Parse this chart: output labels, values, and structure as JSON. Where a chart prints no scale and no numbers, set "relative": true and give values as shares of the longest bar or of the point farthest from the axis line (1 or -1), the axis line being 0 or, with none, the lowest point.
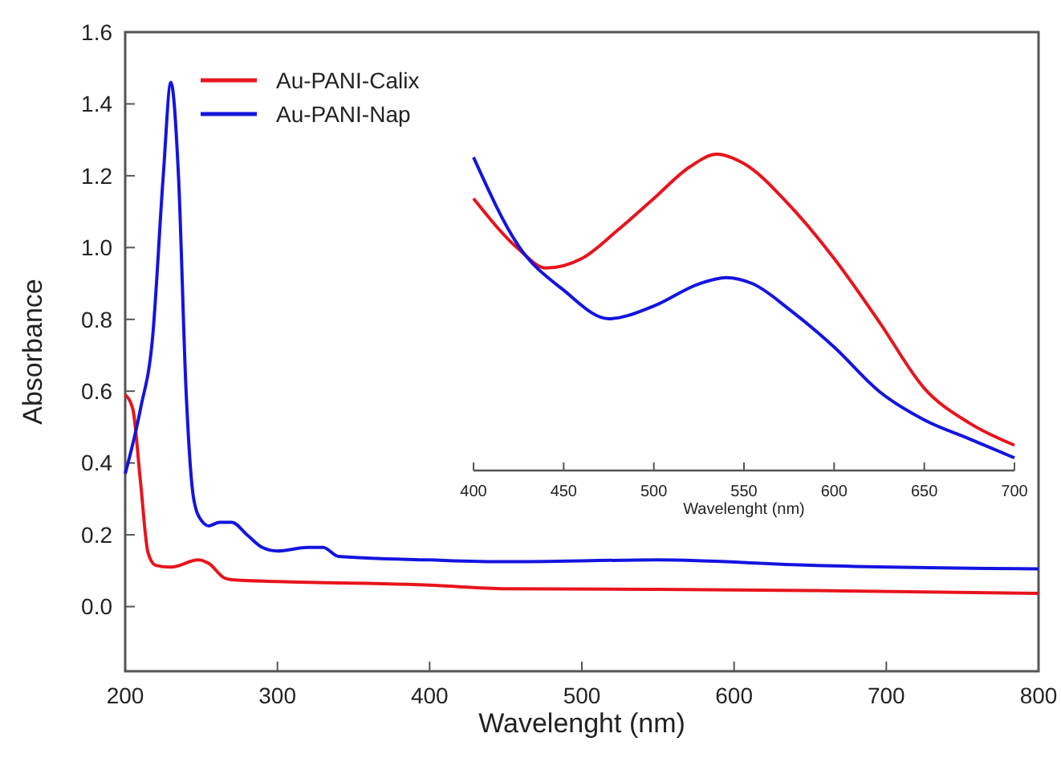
{
  "chart_data": [
    {
      "type": "line",
      "xlabel": "Wavelenght (nm)",
      "ylabel": "Absorbance",
      "xlim": [
        200,
        800
      ],
      "ylim": [
        -0.18,
        1.6
      ],
      "xticks": [
        200,
        300,
        400,
        500,
        600,
        700,
        800
      ],
      "yticks": [
        {
          "value": 0,
          "label": "0.0"
        },
        {
          "value": 0.2,
          "label": "0.2"
        },
        {
          "value": 0.4,
          "label": "0.4"
        },
        {
          "value": 0.6,
          "label": "0.6"
        },
        {
          "value": 0.8,
          "label": "0.8"
        },
        {
          "value": 1,
          "label": "1.0"
        },
        {
          "value": 1.2,
          "label": "1.2"
        },
        {
          "value": 1.4,
          "label": "1.4"
        },
        {
          "value": 1.6,
          "label": "1.6"
        }
      ],
      "legend": "top left",
      "grid": false,
      "series": [
        {
          "name": "Au-PANI-Calix",
          "color": "#e8141c",
          "x": [
            200,
            205,
            210,
            215,
            220,
            230,
            248,
            255,
            265,
            270,
            300,
            400,
            450,
            550,
            650,
            800
          ],
          "values": [
            0.59,
            0.55,
            0.35,
            0.15,
            0.115,
            0.11,
            0.13,
            0.12,
            0.08,
            0.075,
            0.07,
            0.06,
            0.05,
            0.048,
            0.045,
            0.037
          ]
        },
        {
          "name": "Au-PANI-Nap",
          "color": "#1414e0",
          "x": [
            200,
            210,
            218,
            225,
            230,
            235,
            240,
            245,
            250,
            255,
            262,
            270,
            280,
            290,
            300,
            320,
            330,
            340,
            400,
            450,
            550,
            650,
            800
          ],
          "values": [
            0.37,
            0.55,
            0.75,
            1.2,
            1.46,
            1.2,
            0.6,
            0.3,
            0.24,
            0.225,
            0.235,
            0.235,
            0.2,
            0.165,
            0.155,
            0.165,
            0.165,
            0.14,
            0.13,
            0.125,
            0.13,
            0.115,
            0.105
          ]
        }
      ]
    },
    {
      "type": "line",
      "relative": true,
      "xlabel": "Wavelenght (nm)",
      "xlim": [
        400,
        700
      ],
      "xticks": [
        400,
        450,
        500,
        550,
        600,
        650,
        700
      ],
      "tick_labels": "x",
      "series": [
        {
          "color": "#e8141c",
          "x": [
            400,
            425,
            440,
            460,
            480,
            500,
            520,
            535,
            550,
            575,
            600,
            625,
            650,
            675,
            700
          ],
          "values": [
            0.86,
            0.7,
            0.64,
            0.67,
            0.76,
            0.86,
            0.96,
            1,
            0.97,
            0.84,
            0.67,
            0.47,
            0.26,
            0.15,
            0.08
          ]
        },
        {
          "color": "#1414e0",
          "x": [
            400,
            425,
            450,
            475,
            500,
            525,
            540,
            555,
            575,
            600,
            625,
            650,
            675,
            700
          ],
          "values": [
            0.99,
            0.71,
            0.57,
            0.48,
            0.52,
            0.59,
            0.61,
            0.59,
            0.51,
            0.39,
            0.25,
            0.16,
            0.1,
            0.04
          ]
        }
      ]
    }
  ]
}
